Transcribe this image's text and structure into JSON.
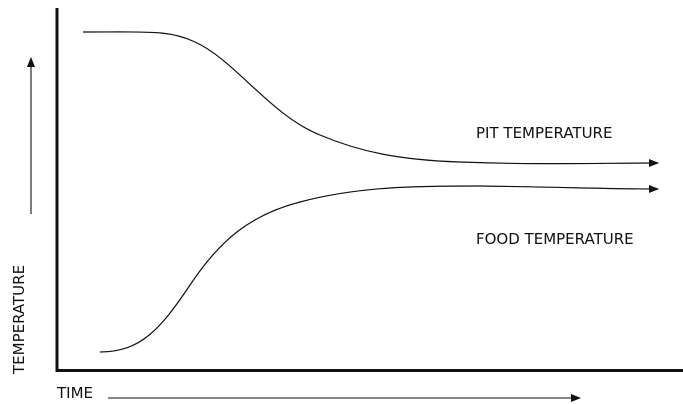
{
  "diagram": {
    "x_axis_label": "TIME",
    "y_axis_label": "TEMPERATURE",
    "curves": [
      {
        "label": "PIT TEMPERATURE"
      },
      {
        "label": "FOOD TEMPERATURE"
      }
    ]
  }
}
